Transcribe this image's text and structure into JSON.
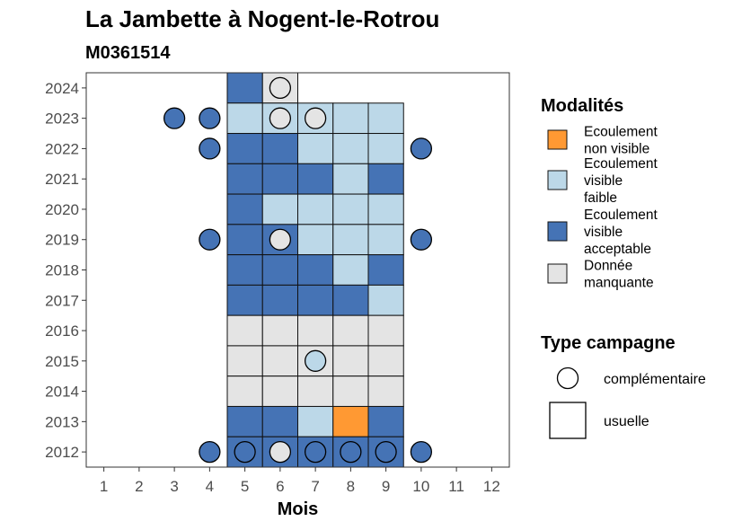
{
  "chart_data": {
    "type": "heatmap",
    "title": "La Jambette à Nogent-le-Rotrou",
    "subtitle": "M0361514",
    "xlabel": "Mois",
    "ylabel": "",
    "x_ticks": [
      "1",
      "2",
      "3",
      "4",
      "5",
      "6",
      "7",
      "8",
      "9",
      "10",
      "11",
      "12"
    ],
    "y_ticks": [
      "2012",
      "2013",
      "2014",
      "2015",
      "2016",
      "2017",
      "2018",
      "2019",
      "2020",
      "2021",
      "2022",
      "2023",
      "2024"
    ],
    "xlim": [
      0.5,
      12.5
    ],
    "ylim": [
      2011.5,
      2024.5
    ],
    "grid": false,
    "legend_placement": "right",
    "legend_modalites": {
      "title": "Modalités",
      "entries": [
        {
          "key": "nonvisible",
          "label_lines": [
            "Ecoulement",
            "non visible"
          ],
          "color": "#FF9933"
        },
        {
          "key": "faible",
          "label_lines": [
            "Ecoulement",
            "visible",
            "faible"
          ],
          "color": "#BCD8E8"
        },
        {
          "key": "acceptable",
          "label_lines": [
            "Ecoulement",
            "visible",
            "acceptable"
          ],
          "color": "#4573B5"
        },
        {
          "key": "manquante",
          "label_lines": [
            "Donnée",
            "manquante"
          ],
          "color": "#E4E4E4"
        }
      ]
    },
    "legend_campagne": {
      "title": "Type campagne",
      "entries": [
        {
          "key": "complementaire",
          "label": "complémentaire",
          "shape": "circle"
        },
        {
          "key": "usuelle",
          "label": "usuelle",
          "shape": "square"
        }
      ]
    },
    "cells_usuelle": [
      {
        "year": 2024,
        "month": 5,
        "cat": "acceptable"
      },
      {
        "year": 2024,
        "month": 6,
        "cat": "manquante"
      },
      {
        "year": 2023,
        "month": 5,
        "cat": "faible"
      },
      {
        "year": 2023,
        "month": 6,
        "cat": "faible"
      },
      {
        "year": 2023,
        "month": 7,
        "cat": "faible"
      },
      {
        "year": 2023,
        "month": 8,
        "cat": "faible"
      },
      {
        "year": 2023,
        "month": 9,
        "cat": "faible"
      },
      {
        "year": 2022,
        "month": 5,
        "cat": "acceptable"
      },
      {
        "year": 2022,
        "month": 6,
        "cat": "acceptable"
      },
      {
        "year": 2022,
        "month": 7,
        "cat": "faible"
      },
      {
        "year": 2022,
        "month": 8,
        "cat": "faible"
      },
      {
        "year": 2022,
        "month": 9,
        "cat": "faible"
      },
      {
        "year": 2021,
        "month": 5,
        "cat": "acceptable"
      },
      {
        "year": 2021,
        "month": 6,
        "cat": "acceptable"
      },
      {
        "year": 2021,
        "month": 7,
        "cat": "acceptable"
      },
      {
        "year": 2021,
        "month": 8,
        "cat": "faible"
      },
      {
        "year": 2021,
        "month": 9,
        "cat": "acceptable"
      },
      {
        "year": 2020,
        "month": 5,
        "cat": "acceptable"
      },
      {
        "year": 2020,
        "month": 6,
        "cat": "faible"
      },
      {
        "year": 2020,
        "month": 7,
        "cat": "faible"
      },
      {
        "year": 2020,
        "month": 8,
        "cat": "faible"
      },
      {
        "year": 2020,
        "month": 9,
        "cat": "faible"
      },
      {
        "year": 2019,
        "month": 5,
        "cat": "acceptable"
      },
      {
        "year": 2019,
        "month": 6,
        "cat": "acceptable"
      },
      {
        "year": 2019,
        "month": 7,
        "cat": "faible"
      },
      {
        "year": 2019,
        "month": 8,
        "cat": "faible"
      },
      {
        "year": 2019,
        "month": 9,
        "cat": "faible"
      },
      {
        "year": 2018,
        "month": 5,
        "cat": "acceptable"
      },
      {
        "year": 2018,
        "month": 6,
        "cat": "acceptable"
      },
      {
        "year": 2018,
        "month": 7,
        "cat": "acceptable"
      },
      {
        "year": 2018,
        "month": 8,
        "cat": "faible"
      },
      {
        "year": 2018,
        "month": 9,
        "cat": "acceptable"
      },
      {
        "year": 2017,
        "month": 5,
        "cat": "acceptable"
      },
      {
        "year": 2017,
        "month": 6,
        "cat": "acceptable"
      },
      {
        "year": 2017,
        "month": 7,
        "cat": "acceptable"
      },
      {
        "year": 2017,
        "month": 8,
        "cat": "acceptable"
      },
      {
        "year": 2017,
        "month": 9,
        "cat": "faible"
      },
      {
        "year": 2016,
        "month": 5,
        "cat": "manquante"
      },
      {
        "year": 2016,
        "month": 6,
        "cat": "manquante"
      },
      {
        "year": 2016,
        "month": 7,
        "cat": "manquante"
      },
      {
        "year": 2016,
        "month": 8,
        "cat": "manquante"
      },
      {
        "year": 2016,
        "month": 9,
        "cat": "manquante"
      },
      {
        "year": 2015,
        "month": 5,
        "cat": "manquante"
      },
      {
        "year": 2015,
        "month": 6,
        "cat": "manquante"
      },
      {
        "year": 2015,
        "month": 7,
        "cat": "manquante"
      },
      {
        "year": 2015,
        "month": 8,
        "cat": "manquante"
      },
      {
        "year": 2015,
        "month": 9,
        "cat": "manquante"
      },
      {
        "year": 2014,
        "month": 5,
        "cat": "manquante"
      },
      {
        "year": 2014,
        "month": 6,
        "cat": "manquante"
      },
      {
        "year": 2014,
        "month": 7,
        "cat": "manquante"
      },
      {
        "year": 2014,
        "month": 8,
        "cat": "manquante"
      },
      {
        "year": 2014,
        "month": 9,
        "cat": "manquante"
      },
      {
        "year": 2013,
        "month": 5,
        "cat": "acceptable"
      },
      {
        "year": 2013,
        "month": 6,
        "cat": "acceptable"
      },
      {
        "year": 2013,
        "month": 7,
        "cat": "faible"
      },
      {
        "year": 2013,
        "month": 8,
        "cat": "nonvisible"
      },
      {
        "year": 2013,
        "month": 9,
        "cat": "acceptable"
      },
      {
        "year": 2012,
        "month": 5,
        "cat": "acceptable"
      },
      {
        "year": 2012,
        "month": 6,
        "cat": "acceptable"
      },
      {
        "year": 2012,
        "month": 7,
        "cat": "acceptable"
      },
      {
        "year": 2012,
        "month": 8,
        "cat": "acceptable"
      },
      {
        "year": 2012,
        "month": 9,
        "cat": "acceptable"
      }
    ],
    "points_complementaire": [
      {
        "year": 2024,
        "month": 6,
        "cat": "manquante"
      },
      {
        "year": 2023,
        "month": 3,
        "cat": "acceptable"
      },
      {
        "year": 2023,
        "month": 4,
        "cat": "acceptable"
      },
      {
        "year": 2023,
        "month": 6,
        "cat": "manquante"
      },
      {
        "year": 2023,
        "month": 7,
        "cat": "manquante"
      },
      {
        "year": 2022,
        "month": 4,
        "cat": "acceptable"
      },
      {
        "year": 2022,
        "month": 10,
        "cat": "acceptable"
      },
      {
        "year": 2019,
        "month": 4,
        "cat": "acceptable"
      },
      {
        "year": 2019,
        "month": 6,
        "cat": "manquante"
      },
      {
        "year": 2019,
        "month": 10,
        "cat": "acceptable"
      },
      {
        "year": 2015,
        "month": 7,
        "cat": "faible"
      },
      {
        "year": 2012,
        "month": 4,
        "cat": "acceptable"
      },
      {
        "year": 2012,
        "month": 5,
        "cat": "acceptable"
      },
      {
        "year": 2012,
        "month": 6,
        "cat": "manquante"
      },
      {
        "year": 2012,
        "month": 7,
        "cat": "acceptable"
      },
      {
        "year": 2012,
        "month": 8,
        "cat": "acceptable"
      },
      {
        "year": 2012,
        "month": 9,
        "cat": "acceptable"
      },
      {
        "year": 2012,
        "month": 10,
        "cat": "acceptable"
      }
    ]
  }
}
